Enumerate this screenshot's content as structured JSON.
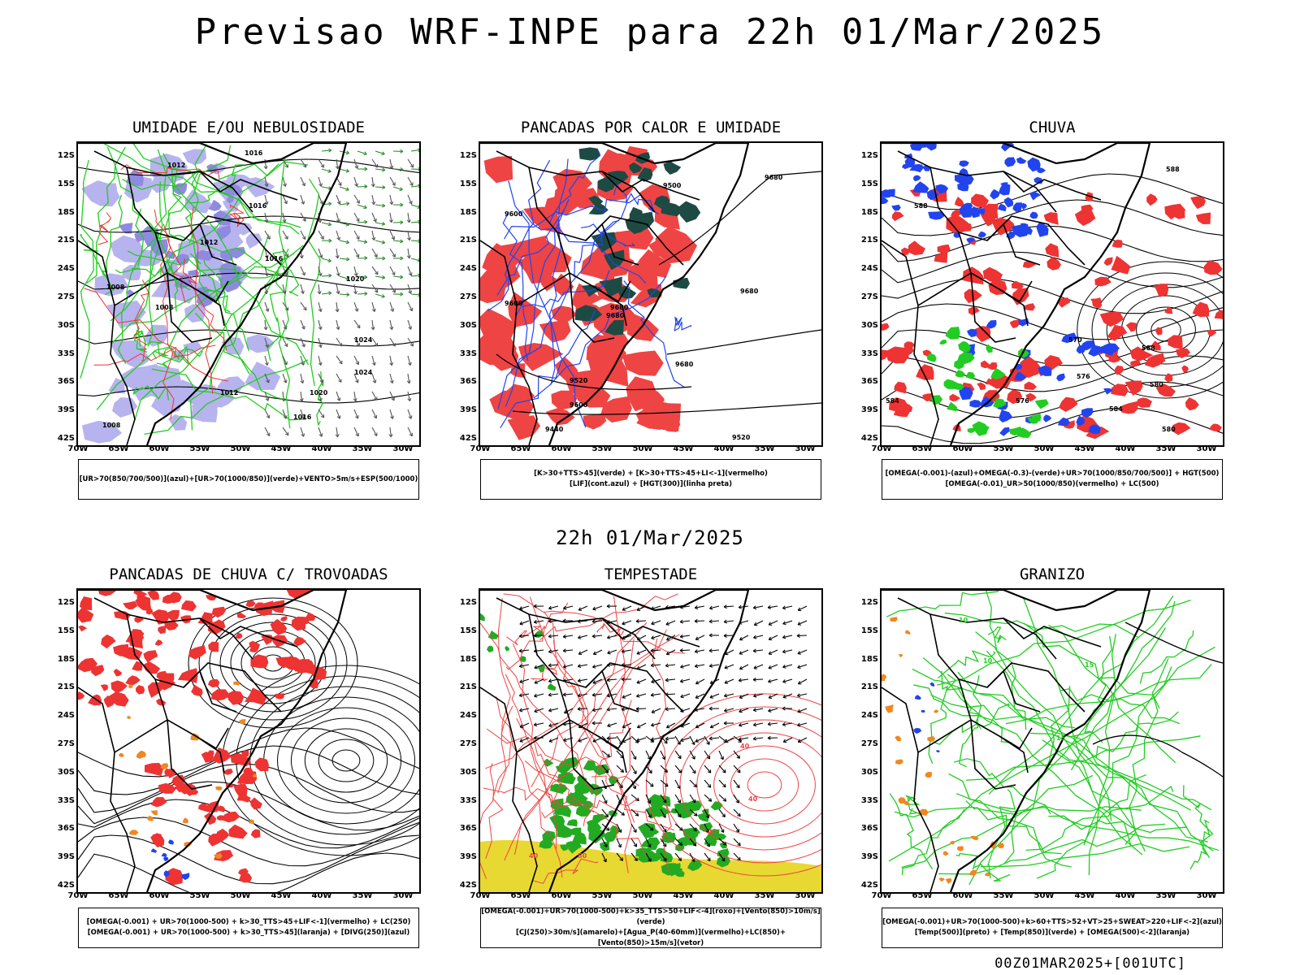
{
  "title": "Previsao WRF-INPE  para 22h 01/Mar/2025",
  "middle_title": "22h 01/Mar/2025",
  "footer": "00Z01MAR2025+[001UTC]",
  "axis": {
    "lat_labels": [
      "12S",
      "15S",
      "18S",
      "21S",
      "24S",
      "27S",
      "30S",
      "33S",
      "36S",
      "39S",
      "42S"
    ],
    "lon_labels": [
      "70W",
      "65W",
      "60W",
      "55W",
      "50W",
      "45W",
      "40W",
      "35W",
      "30W"
    ]
  },
  "panels": [
    {
      "id": "umidade",
      "title": "UMIDADE E/OU NEBULOSIDADE",
      "caption": [
        "[UR>70(850/700/500)](azul)+[UR>70(1000/850)](verde)+VENTO>5m/s+ESP(500/1000)"
      ],
      "contour_labels": [
        "1012",
        "1016",
        "1016",
        "1012",
        "1008",
        "1020",
        "1024",
        "1024",
        "1020",
        "1016",
        "1012",
        "1008",
        "1008",
        "1016"
      ],
      "colors": {
        "fill": "#b7b3ee",
        "fill2": "#8f8ae0",
        "line": "#22cc22",
        "line2": "#ee3333",
        "contour": "#000000"
      }
    },
    {
      "id": "pancadas-calor",
      "title": "PANCADAS POR CALOR E UMIDADE",
      "caption": [
        "[K>30+TTS>45](verde) + [K>30+TTS>45+LI<-1](vermelho)",
        "[LIF](cont.azul) + [HGT(300)](linha preta)"
      ],
      "contour_labels": [
        "9680",
        "9600",
        "9520",
        "9680",
        "9680",
        "9680",
        "9600",
        "9520",
        "9440",
        "9600",
        "9680",
        "9500"
      ],
      "colors": {
        "fill": "#ee4444",
        "fill2": "#1e4a44",
        "line": "#2244ee",
        "contour": "#000000"
      }
    },
    {
      "id": "chuva",
      "title": "CHUVA",
      "caption": [
        "[OMEGA(-0.001)-(azul)+OMEGA(-0.3)-(verde)+UR>70(1000/850/700/500)] + HGT(500)",
        "[OMEGA(-0.01)_UR>50(1000/850)(vermelho) + LC(500)"
      ],
      "contour_labels": [
        "588",
        "588",
        "584",
        "580",
        "576",
        "570",
        "588",
        "584",
        "580",
        "576"
      ],
      "colors": {
        "fill": "#ee3333",
        "fill2": "#2244ee",
        "fill3": "#22cc22",
        "contour": "#000000"
      }
    },
    {
      "id": "trovoadas",
      "title": "PANCADAS DE CHUVA C/ TROVOADAS",
      "caption": [
        "[OMEGA(-0.001) + UR>70(1000-500) + k>30_TTS>45+LIF<-1](vermelho) + LC(250)",
        "[OMEGA(-0.001) + UR>70(1000-500) + k>30_TTS>45](laranja) + [DIVG(250)](azul)"
      ],
      "contour_labels": [],
      "colors": {
        "fill": "#ee3333",
        "fill2": "#ee8822",
        "fill3": "#2244ee",
        "contour": "#000000"
      }
    },
    {
      "id": "tempestade",
      "title": "TEMPESTADE",
      "caption": [
        "[OMEGA(-0.001)+UR>70(1000-500)+k>35_TTS>50+LIF<-4](roxo)+[Vento(850)>10m/s](verde)",
        "[CJ(250)>30m/s](amarelo)+[Agua_P(40-60mm)](vermelho)+LC(850)+[Vento(850)>15m/s](vetor)"
      ],
      "contour_labels": [
        "40",
        "40",
        "50",
        "40",
        "40"
      ],
      "colors": {
        "fill": "#e8d832",
        "fill2": "#22aa22",
        "line": "#ee4444",
        "contour": "#000000"
      }
    },
    {
      "id": "granizo",
      "title": "GRANIZO",
      "caption": [
        "[OMEGA(-0.001)+UR>70(1000-500)+k>60+TTS>52+VT>25+SWEAT>220+LIF<-2](azul)",
        "[Temp(500)](preto) + [Temp(850)](verde) + [OMEGA(500)<-2](laranja)"
      ],
      "contour_labels": [
        "10",
        "10",
        "15",
        "15"
      ],
      "colors": {
        "line": "#22cc22",
        "fill": "#ee8822",
        "fill2": "#2244ee",
        "contour": "#000000"
      }
    }
  ]
}
